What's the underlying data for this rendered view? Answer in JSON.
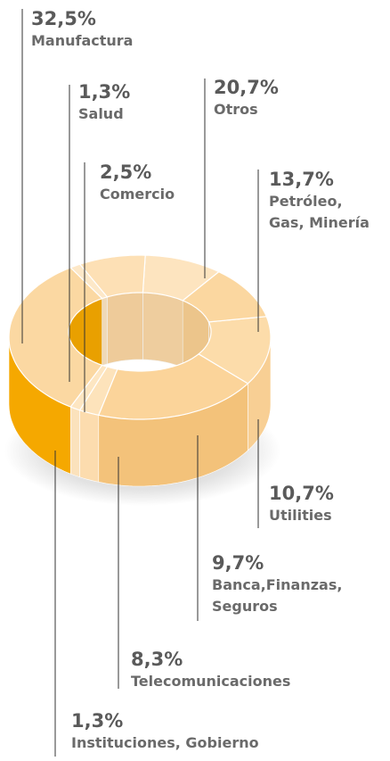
{
  "chart_data": {
    "type": "pie",
    "categories": [
      "Manufactura",
      "Salud",
      "Comercio",
      "Otros",
      "Petróleo,\nGas, Minería",
      "Utilities",
      "Banca,Finanzas,\nSeguros",
      "Telecomunicaciones",
      "Instituciones, Gobierno"
    ],
    "values": [
      32.5,
      1.3,
      2.5,
      20.7,
      13.7,
      10.7,
      9.7,
      8.3,
      1.3
    ],
    "value_labels": [
      "32,5%",
      "1,3%",
      "2,5%",
      "20,7%",
      "13,7%",
      "10,7%",
      "9,7%",
      "8,3%",
      "1,3%"
    ],
    "colors": [
      "#fbd8a2",
      "#fde6c2",
      "#fde3bb",
      "#fbd49a",
      "#fcdcaa",
      "#fbd7a0",
      "#fde4bf",
      "#fde0b5",
      "#fde8c8"
    ],
    "side_colors": [
      "#f5a800",
      "#fbe2bc",
      "#fcdcae",
      "#f3c27a",
      "#f8cf94",
      "#f8cf92",
      "#fbd8a6",
      "#fad6a2",
      "#fce4c2"
    ]
  }
}
